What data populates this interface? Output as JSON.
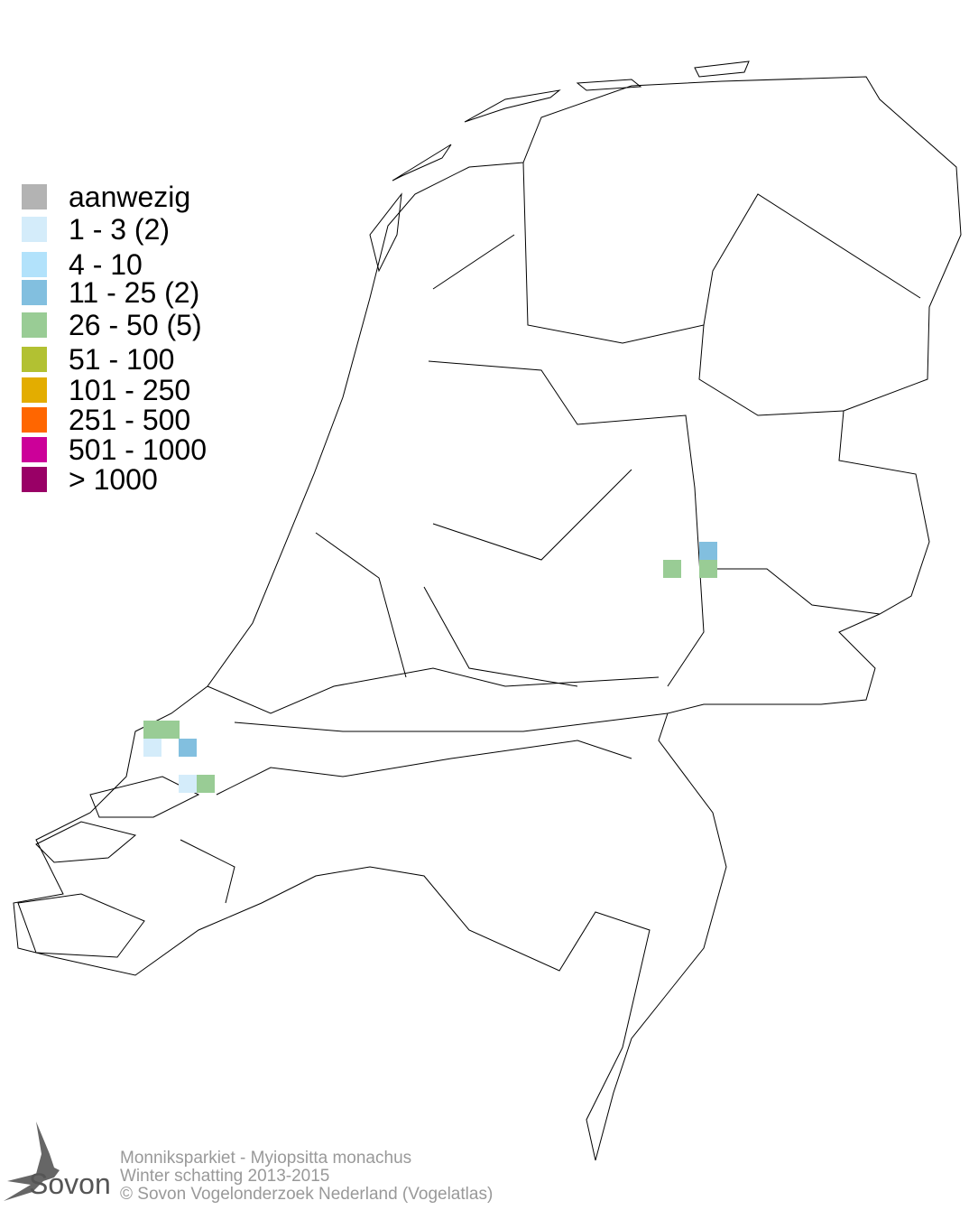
{
  "legend": {
    "items": [
      {
        "label": "aanwezig",
        "color": "#b3b3b3"
      },
      {
        "label": "1 - 3 (2)",
        "color": "#d4ecfa"
      },
      {
        "label": "4 - 10",
        "color": "#b2e2fb"
      },
      {
        "label": "11 - 25 (2)",
        "color": "#82bfdf"
      },
      {
        "label": "26 - 50 (5)",
        "color": "#99cc95"
      },
      {
        "label": "51 - 100",
        "color": "#b2c132"
      },
      {
        "label": "101 - 250",
        "color": "#e3ad00"
      },
      {
        "label": "251 - 500",
        "color": "#ff6600"
      },
      {
        "label": "501 - 1000",
        "color": "#cc0099"
      },
      {
        "label": "> 1000",
        "color": "#990066"
      }
    ]
  },
  "caption": {
    "species": "Monniksparkiet - Myiopsitta monachus",
    "season": "Winter schatting 2013-2015",
    "copyright": "© Sovon Vogelonderzoek Nederland (Vogelatlas)"
  },
  "logo": {
    "text": "Sovon"
  },
  "map_cells": [
    {
      "class": "26 - 50",
      "region": "Zuid-Holland coast"
    },
    {
      "class": "26 - 50",
      "region": "Zuid-Holland coast"
    },
    {
      "class": "1 - 3",
      "region": "Zuid-Holland coast"
    },
    {
      "class": "11 - 25",
      "region": "Zuid-Holland coast"
    },
    {
      "class": "1 - 3",
      "region": "Zuid-Holland south"
    },
    {
      "class": "26 - 50",
      "region": "Zuid-Holland south"
    },
    {
      "class": "26 - 50",
      "region": "Overijssel"
    },
    {
      "class": "11 - 25",
      "region": "Overijssel"
    },
    {
      "class": "26 - 50",
      "region": "Overijssel"
    }
  ]
}
